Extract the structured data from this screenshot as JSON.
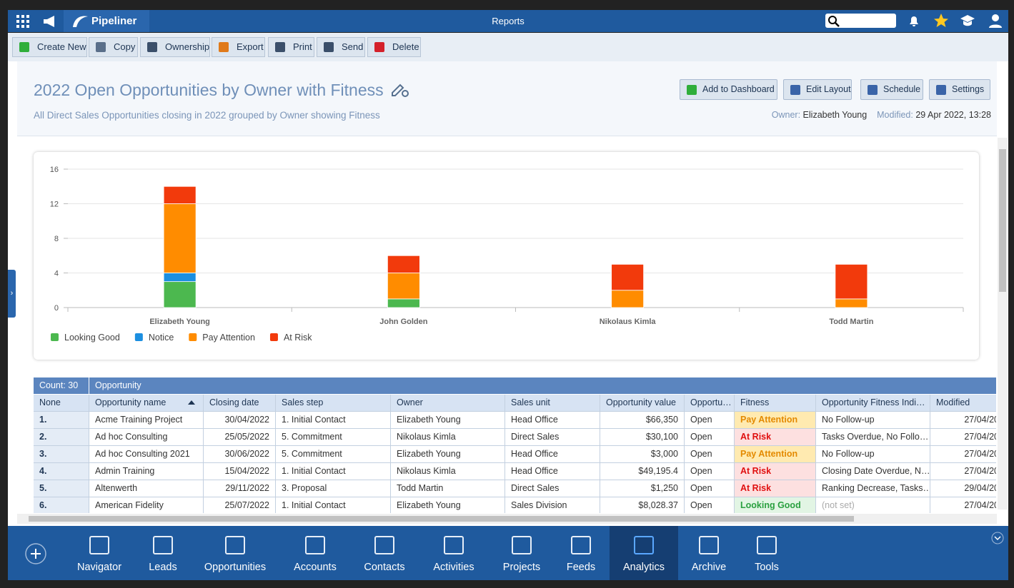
{
  "app": {
    "brand": "Pipeliner",
    "section": "Reports"
  },
  "toolbar": [
    "Create New",
    "Copy",
    "Ownership",
    "Export",
    "Print",
    "Send",
    "Delete"
  ],
  "report": {
    "title": "2022 Open Opportunities by Owner with Fitness",
    "subtitle": "All Direct Sales Opportunities closing in 2022 grouped by Owner showing Fitness",
    "buttons": [
      "Add to Dashboard",
      "Edit Layout",
      "Schedule",
      "Settings"
    ],
    "owner_label": "Owner:",
    "owner": "Elizabeth Young",
    "modified_label": "Modified:",
    "modified": "29 Apr 2022, 13:28"
  },
  "chart_data": {
    "type": "bar",
    "stacked": true,
    "categories": [
      "Elizabeth Young",
      "John Golden",
      "Nikolaus Kimla",
      "Todd Martin"
    ],
    "series": [
      {
        "name": "Looking Good",
        "color": "#4cb84f",
        "values": [
          3,
          1,
          0,
          0
        ]
      },
      {
        "name": "Notice",
        "color": "#1c8fe0",
        "values": [
          1,
          0,
          0,
          0
        ]
      },
      {
        "name": "Pay Attention",
        "color": "#ff8c00",
        "values": [
          8,
          3,
          2,
          1
        ]
      },
      {
        "name": "At Risk",
        "color": "#f23a0c",
        "values": [
          2,
          2,
          3,
          4
        ]
      }
    ],
    "ylim": [
      0,
      16
    ],
    "yticks": [
      0,
      4,
      8,
      12,
      16
    ],
    "grid": true,
    "legend": "bottom-left"
  },
  "table": {
    "count": "Count: 30",
    "group": "Opportunity",
    "columns": [
      "None",
      "Opportunity name",
      "Closing date",
      "Sales step",
      "Owner",
      "Sales unit",
      "Opportunity value",
      "Opportu…",
      "Fitness",
      "Opportunity Fitness Indi…",
      "Modified"
    ],
    "rows": [
      [
        "1.",
        "Acme Training Project",
        "30/04/2022",
        "1. Initial Contact",
        "Elizabeth Young",
        "Head Office",
        "$66,350",
        "Open",
        "Pay Attention",
        "No Follow-up",
        "27/04/20"
      ],
      [
        "2.",
        "Ad hoc Consulting",
        "25/05/2022",
        "5. Commitment",
        "Nikolaus Kimla",
        "Direct Sales",
        "$30,100",
        "Open",
        "At Risk",
        "Tasks Overdue, No Follo…",
        "27/04/20"
      ],
      [
        "3.",
        "Ad hoc Consulting 2021",
        "30/06/2022",
        "5. Commitment",
        "Elizabeth Young",
        "Head Office",
        "$3,000",
        "Open",
        "Pay Attention",
        "No Follow-up",
        "27/04/20"
      ],
      [
        "4.",
        "Admin Training",
        "15/04/2022",
        "1. Initial Contact",
        "Nikolaus Kimla",
        "Head Office",
        "$49,195.4",
        "Open",
        "At Risk",
        "Closing Date Overdue, N…",
        "27/04/20"
      ],
      [
        "5.",
        "Altenwerth",
        "29/11/2022",
        "3. Proposal",
        "Todd Martin",
        "Direct Sales",
        "$1,250",
        "Open",
        "At Risk",
        "Ranking Decrease, Tasks…",
        "29/04/20"
      ],
      [
        "6.",
        "American Fidelity",
        "25/07/2022",
        "1. Initial Contact",
        "Elizabeth Young",
        "Sales Division",
        "$8,028.37",
        "Open",
        "Looking Good",
        "(not set)",
        "27/04/20"
      ]
    ]
  },
  "nav": [
    "Navigator",
    "Leads",
    "Opportunities",
    "Accounts",
    "Contacts",
    "Activities",
    "Projects",
    "Feeds",
    "Analytics",
    "Archive",
    "Tools"
  ],
  "nav_active": "Analytics"
}
